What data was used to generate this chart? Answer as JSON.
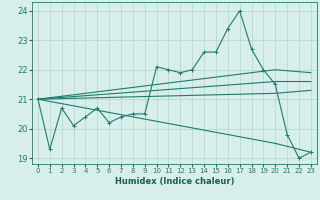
{
  "xlabel": "Humidex (Indice chaleur)",
  "bg_color": "#d8eeeb",
  "line_color": "#1e7b6e",
  "grid_color": "#b8d8d4",
  "xlim": [
    -0.5,
    23.5
  ],
  "ylim": [
    18.8,
    24.3
  ],
  "yticks": [
    19,
    20,
    21,
    22,
    23,
    24
  ],
  "xticks": [
    0,
    1,
    2,
    3,
    4,
    5,
    6,
    7,
    8,
    9,
    10,
    11,
    12,
    13,
    14,
    15,
    16,
    17,
    18,
    19,
    20,
    21,
    22,
    23
  ],
  "series_main": {
    "x": [
      0,
      1,
      2,
      3,
      4,
      5,
      6,
      7,
      8,
      9,
      10,
      11,
      12,
      13,
      14,
      15,
      16,
      17,
      18,
      19,
      20,
      21,
      22,
      23
    ],
    "y": [
      21.0,
      19.3,
      20.7,
      20.1,
      20.4,
      20.7,
      20.2,
      20.4,
      20.5,
      20.5,
      22.1,
      22.0,
      21.9,
      22.0,
      22.6,
      22.6,
      23.4,
      24.0,
      22.7,
      22.0,
      21.5,
      19.8,
      19.0,
      19.2
    ]
  },
  "series_upper": {
    "x": [
      0,
      20,
      23
    ],
    "y": [
      21.0,
      22.0,
      21.9
    ]
  },
  "series_mid_upper": {
    "x": [
      0,
      20,
      23
    ],
    "y": [
      21.0,
      21.6,
      21.6
    ]
  },
  "series_mid_lower": {
    "x": [
      0,
      20,
      23
    ],
    "y": [
      21.0,
      21.2,
      21.3
    ]
  },
  "series_lower": {
    "x": [
      0,
      20,
      23
    ],
    "y": [
      21.0,
      19.5,
      19.2
    ]
  }
}
